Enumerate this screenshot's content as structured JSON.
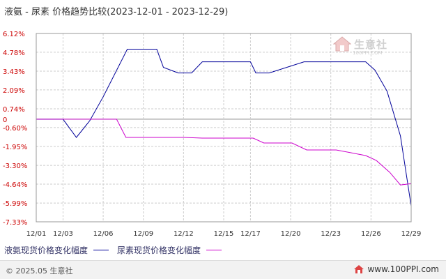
{
  "title": "液氨 - 尿素 价格趋势比较(2023-12-01 - 2023-12-29)",
  "watermark": {
    "brand": "生意社",
    "url": "100PPI.COM"
  },
  "footer": {
    "copyright": "© 2025.05 生意社",
    "site": "www.100PPI.com"
  },
  "chart_data": {
    "type": "line",
    "y_ticks": [
      "6.12%",
      "4.78%",
      "3.43%",
      "2.09%",
      "0.74%",
      "0",
      "-0.60%",
      "-1.95%",
      "-3.30%",
      "-4.64%",
      "-5.99%",
      "-7.33%"
    ],
    "y_tick_values": [
      6.12,
      4.78,
      3.43,
      2.09,
      0.74,
      0,
      -0.6,
      -1.95,
      -3.3,
      -4.64,
      -5.99,
      -7.33
    ],
    "ylim": [
      -7.33,
      6.12
    ],
    "x_ticks": [
      "12/01",
      "12/03",
      "12/06",
      "12/09",
      "12/12",
      "12/15",
      "12/17",
      "12/20",
      "12/23",
      "12/26",
      "12/29"
    ],
    "x_tick_days": [
      1,
      3,
      6,
      9,
      12,
      15,
      17,
      20,
      23,
      26,
      29
    ],
    "xlim": [
      1,
      29
    ],
    "grid": true,
    "legend_position": "bottom-left",
    "series": [
      {
        "name": "液氨现货价格变化幅度",
        "color": "#000099",
        "points": [
          [
            1,
            0
          ],
          [
            3,
            0
          ],
          [
            4,
            -1.3
          ],
          [
            5,
            -0.1
          ],
          [
            6,
            1.6
          ],
          [
            7.8,
            5.0
          ],
          [
            10,
            5.0
          ],
          [
            10.5,
            3.7
          ],
          [
            11.6,
            3.3
          ],
          [
            12.6,
            3.3
          ],
          [
            13.4,
            4.1
          ],
          [
            17,
            4.1
          ],
          [
            17.4,
            3.3
          ],
          [
            18.4,
            3.3
          ],
          [
            21,
            4.1
          ],
          [
            25.6,
            4.1
          ],
          [
            26.3,
            3.5
          ],
          [
            27.2,
            2.0
          ],
          [
            28.2,
            -1.2
          ],
          [
            29,
            -6.2
          ]
        ]
      },
      {
        "name": "尿素现货价格变化幅度",
        "color": "#cc00cc",
        "points": [
          [
            1,
            0
          ],
          [
            7,
            0
          ],
          [
            7.7,
            -1.3
          ],
          [
            12,
            -1.3
          ],
          [
            13.4,
            -1.35
          ],
          [
            17.2,
            -1.35
          ],
          [
            18,
            -1.7
          ],
          [
            20.1,
            -1.7
          ],
          [
            21.2,
            -2.2
          ],
          [
            23.4,
            -2.2
          ],
          [
            25.6,
            -2.6
          ],
          [
            26.4,
            -2.95
          ],
          [
            27.4,
            -3.8
          ],
          [
            28.2,
            -4.7
          ],
          [
            29,
            -4.6
          ]
        ]
      }
    ]
  }
}
